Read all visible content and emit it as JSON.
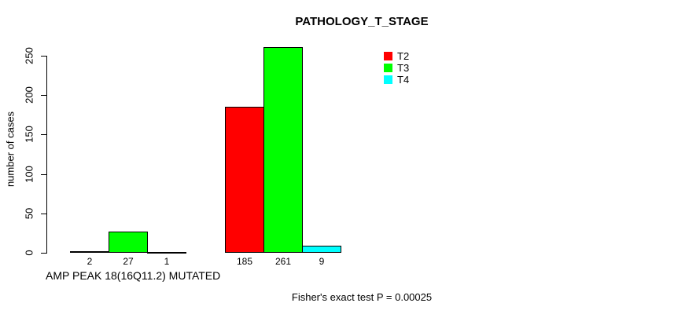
{
  "chart_data": {
    "type": "bar",
    "title": "PATHOLOGY_T_STAGE",
    "xlabel": "AMP PEAK 18(16Q11.2) MUTATED",
    "ylabel": "number of cases",
    "ylim": [
      0,
      250
    ],
    "yticks": [
      0,
      50,
      100,
      150,
      200,
      250
    ],
    "grid": false,
    "bar_value_labels_shown": true,
    "legend_position": "top-right",
    "series": [
      {
        "name": "T2",
        "color": "#ff0000",
        "values": [
          2,
          185
        ]
      },
      {
        "name": "T3",
        "color": "#00ff00",
        "values": [
          27,
          261
        ]
      },
      {
        "name": "T4",
        "color": "#00ffff",
        "values": [
          1,
          9
        ]
      }
    ],
    "annotation": "Fisher's exact test P = 0.00025"
  }
}
